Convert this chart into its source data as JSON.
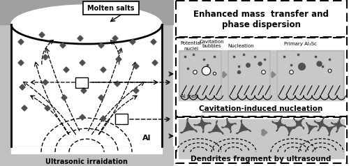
{
  "fig_width": 5.0,
  "fig_height": 2.38,
  "dpi": 100,
  "title_left": "Molten salts",
  "label_al": "Al",
  "label_ultrasonic": "Ultrasonic irraidation",
  "label_enhanced": "Enhanced mass  transfer and\nphase dispersion",
  "label_cavitation_nucl": "Cavitation-induced nucleation",
  "label_dendrites": "Dendrites fragment by ultrasound",
  "label_potential": "Potential\nnuclei",
  "label_cavitation_b": "Cavitation\nbubbles",
  "label_nucleation": "Nucleation",
  "label_primary": "Primary Al₃Sc",
  "label_al_melt": "Al melt",
  "salt_gray": "#a0a0a0",
  "melt_white": "#f0f0f0",
  "bottom_dot": "#c8c8c8",
  "panel_dot": "#c8c8c8",
  "dark_shape": "#505050",
  "arrow_gray": "#707070"
}
